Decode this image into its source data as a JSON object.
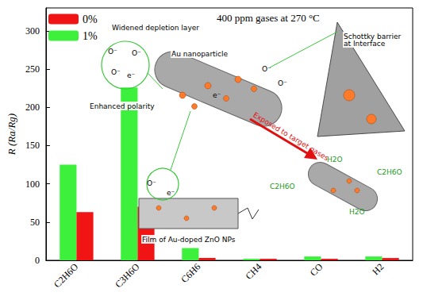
{
  "chart_data": {
    "type": "bar",
    "title": "400 ppm gases at 270 °C",
    "y_label": "R (Ra/Rg)",
    "categories": [
      "C2H6O",
      "C3H6O",
      "C6H6",
      "CH4",
      "CO",
      "H2"
    ],
    "series": [
      {
        "name": "1%",
        "color": "#3cf03c",
        "values": [
          125,
          226,
          16,
          2,
          5,
          5
        ]
      },
      {
        "name": "0%",
        "color": "#f01414",
        "values": [
          63,
          70,
          3,
          2,
          2,
          3
        ]
      }
    ],
    "ylim": [
      0,
      330
    ],
    "yticks": [
      0,
      50,
      100,
      150,
      200,
      250,
      300
    ],
    "grid": false,
    "legend": "upper left",
    "annotations": [
      "Widened depletion layer",
      "Au nanoparticle",
      "Enhanced polarity",
      "Schottky barrier at Interface",
      "Exposed to target gases",
      "Film of Au-doped ZnO NPs",
      "O⁻",
      "e⁻",
      "C2H6O",
      "H2O"
    ]
  }
}
